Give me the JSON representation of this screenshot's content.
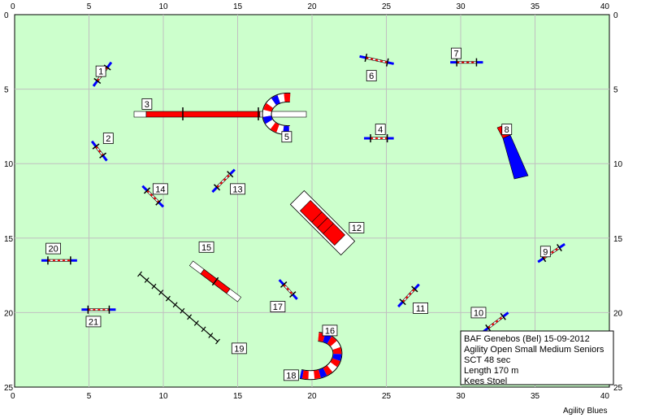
{
  "axes": {
    "x_ticks": [
      "0",
      "5",
      "10",
      "15",
      "20",
      "25",
      "30",
      "35",
      "40"
    ],
    "y_ticks": [
      "0",
      "5",
      "10",
      "15",
      "20",
      "25"
    ],
    "x_range": [
      0,
      40
    ],
    "y_range": [
      0,
      25
    ],
    "grid": true
  },
  "colors": {
    "field": "#ccffcc",
    "grid": "#c0c0c0",
    "red": "#ff0000",
    "blue": "#0000ff",
    "dark_blue": "#00008b"
  },
  "obstacles": [
    {
      "num": "1",
      "type": "jump",
      "x1": 5.3,
      "y1": 4.8,
      "x2": 6.5,
      "y2": 3.2,
      "lx": 5.8,
      "ly": 3.8
    },
    {
      "num": "2",
      "type": "jump",
      "x1": 5.2,
      "y1": 8.5,
      "x2": 6.2,
      "y2": 9.8,
      "lx": 6.3,
      "ly": 8.3
    },
    {
      "num": "3",
      "type": "dogwalk",
      "x1": 8.5,
      "y1": 6.6,
      "x2": 19.0,
      "y2": 6.6,
      "lx": 8.9,
      "ly": 6.0
    },
    {
      "num": "4",
      "type": "jump",
      "x1": 23.5,
      "y1": 8.3,
      "x2": 25.5,
      "y2": 8.3,
      "lx": 24.6,
      "ly": 7.7
    },
    {
      "num": "5",
      "type": "tunnel_label",
      "lx": 18.3,
      "ly": 8.2
    },
    {
      "num": "6",
      "type": "jump",
      "x1": 23.2,
      "y1": 2.8,
      "x2": 25.5,
      "y2": 3.3,
      "lx": 24.0,
      "ly": 4.1
    },
    {
      "num": "7",
      "type": "jump",
      "x1": 29.3,
      "y1": 3.2,
      "x2": 31.5,
      "y2": 3.2,
      "lx": 29.7,
      "ly": 2.6
    },
    {
      "num": "8",
      "type": "chute_label",
      "lx": 33.1,
      "ly": 7.7
    },
    {
      "num": "9",
      "type": "jump",
      "x1": 35.2,
      "y1": 16.6,
      "x2": 37.0,
      "y2": 15.4,
      "lx": 35.7,
      "ly": 15.9
    },
    {
      "num": "10",
      "type": "jump",
      "x1": 31.5,
      "y1": 21.3,
      "x2": 33.2,
      "y2": 20.0,
      "lx": 31.2,
      "ly": 20.0
    },
    {
      "num": "11",
      "type": "jump",
      "x1": 25.8,
      "y1": 19.6,
      "x2": 27.2,
      "y2": 18.1,
      "lx": 27.3,
      "ly": 19.7
    },
    {
      "num": "12",
      "type": "table_label",
      "lx": 23.0,
      "ly": 14.3
    },
    {
      "num": "13",
      "type": "jump",
      "x1": 13.3,
      "y1": 11.9,
      "x2": 14.8,
      "y2": 10.4,
      "lx": 15.0,
      "ly": 11.7
    },
    {
      "num": "14",
      "type": "jump",
      "x1": 8.6,
      "y1": 11.5,
      "x2": 10.0,
      "y2": 12.9,
      "lx": 9.8,
      "ly": 11.7
    },
    {
      "num": "15",
      "type": "weave_label",
      "lx": 12.9,
      "ly": 15.6
    },
    {
      "num": "16",
      "type": "tunnel_label",
      "lx": 21.2,
      "ly": 21.2
    },
    {
      "num": "17",
      "type": "jump",
      "x1": 17.8,
      "y1": 17.8,
      "x2": 19.0,
      "y2": 19.1,
      "lx": 17.7,
      "ly": 19.6
    },
    {
      "num": "18",
      "type": "tunnel_label",
      "lx": 18.6,
      "ly": 24.2
    },
    {
      "num": "19",
      "type": "weave_label",
      "lx": 15.1,
      "ly": 22.4
    },
    {
      "num": "20",
      "type": "jump",
      "x1": 1.8,
      "y1": 16.5,
      "x2": 4.2,
      "y2": 16.5,
      "lx": 2.6,
      "ly": 15.7
    },
    {
      "num": "21",
      "type": "jump",
      "x1": 4.5,
      "y1": 19.8,
      "x2": 6.8,
      "y2": 19.8,
      "lx": 5.3,
      "ly": 20.6
    }
  ],
  "info": {
    "line1": "BAF Genebos (Bel) 15-09-2012",
    "line2": "Agility Open Small Medium Seniors",
    "line3": "SCT 48 sec",
    "line4": "Length 170 m",
    "line5": "Kees Stoel"
  },
  "brand": "Agility Blues"
}
